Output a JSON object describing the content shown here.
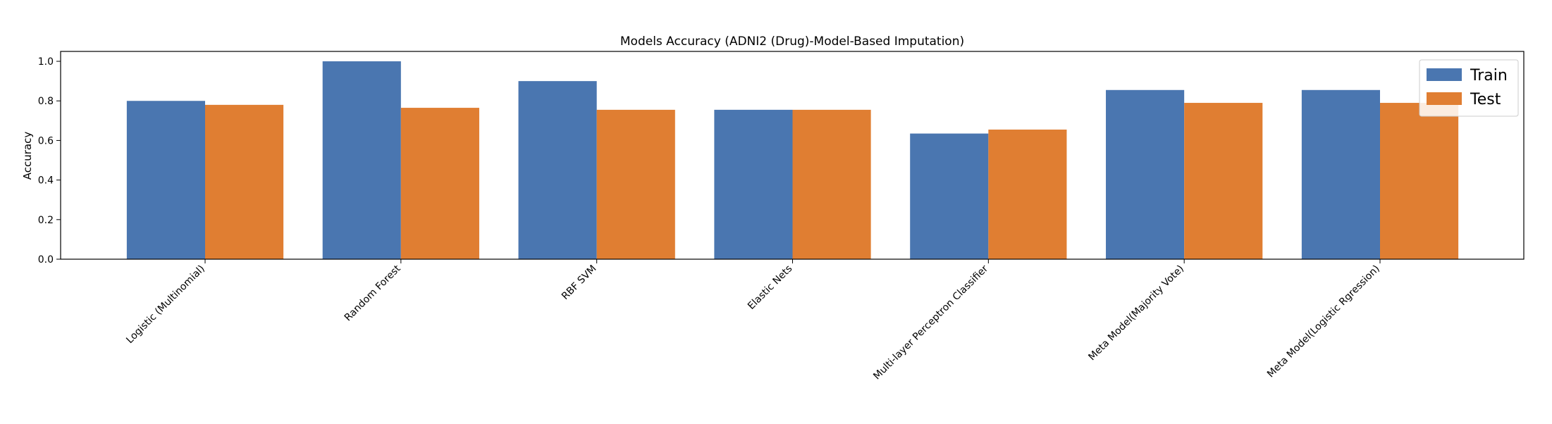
{
  "chart_data": {
    "type": "bar",
    "title": "Models Accuracy (ADNI2 (Drug)-Model-Based Imputation)",
    "xlabel": "",
    "ylabel": "Accuracy",
    "ylim": [
      0,
      1.05
    ],
    "yticks": [
      "0.0",
      "0.2",
      "0.4",
      "0.6",
      "0.8",
      "1.0"
    ],
    "categories": [
      "Logistic (Multinomial)",
      "Random Forest",
      "RBF SVM",
      "Elastic Nets",
      "Multi-layer Perceptron Classifier",
      "Meta Model(Majority Vote)",
      "Meta Model(Logistic Rgression)"
    ],
    "series": [
      {
        "name": "Train",
        "color": "#4a76b0",
        "values": [
          0.8,
          1.0,
          0.9,
          0.755,
          0.635,
          0.855,
          0.855
        ]
      },
      {
        "name": "Test",
        "color": "#e07e32",
        "values": [
          0.78,
          0.765,
          0.755,
          0.755,
          0.655,
          0.79,
          0.79
        ]
      }
    ],
    "grid": false,
    "legend_position": "top-right"
  }
}
